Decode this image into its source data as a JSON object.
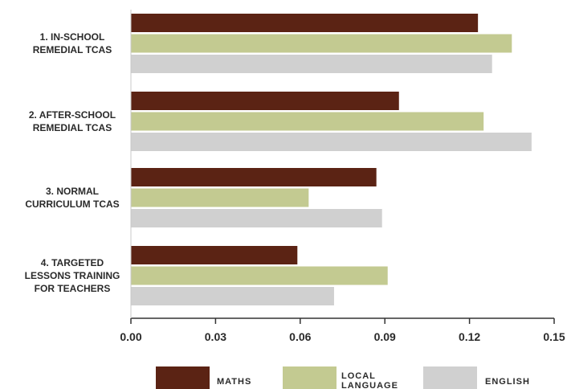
{
  "chart_data": {
    "type": "bar",
    "orientation": "horizontal",
    "categories": [
      [
        "1. IN-SCHOOL",
        "REMEDIAL TCAS"
      ],
      [
        "2. AFTER-SCHOOL",
        "REMEDIAL TCAS"
      ],
      [
        "3. NORMAL",
        "CURRICULUM TCAS"
      ],
      [
        "4. TARGETED",
        "LESSONS TRAINING",
        "FOR TEACHERS"
      ]
    ],
    "series": [
      {
        "name": "MATHS",
        "color": "#5b2314",
        "values": [
          0.123,
          0.095,
          0.087,
          0.059
        ]
      },
      {
        "name": "LOCAL LANGUAGE",
        "label_lines": [
          "LOCAL",
          "LANGUAGE"
        ],
        "color": "#c3ca91",
        "values": [
          0.135,
          0.125,
          0.063,
          0.091
        ]
      },
      {
        "name": "ENGLISH",
        "color": "#d0d0d0",
        "values": [
          0.128,
          0.142,
          0.089,
          0.072
        ]
      }
    ],
    "xlim": [
      0,
      0.15
    ],
    "xticks": [
      "0.00",
      "0.03",
      "0.06",
      "0.09",
      "0.12",
      "0.15"
    ],
    "xtick_values": [
      0,
      0.03,
      0.06,
      0.09,
      0.12,
      0.15
    ],
    "grid": false,
    "legend_position": "bottom"
  }
}
